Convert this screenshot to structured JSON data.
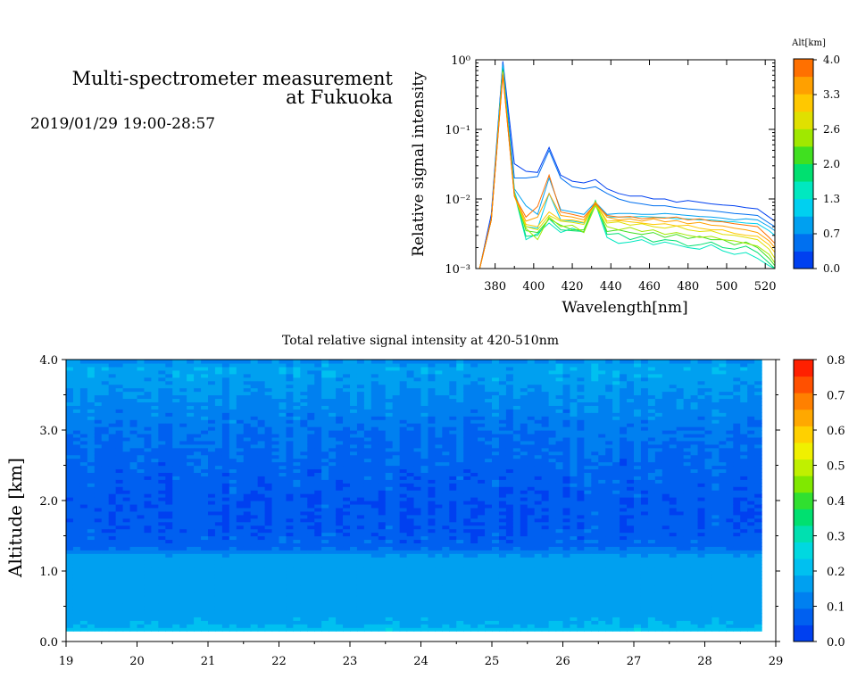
{
  "header": {
    "title_line1": "Multi-spectrometer measurement",
    "title_line2": "at Fukuoka",
    "datetime": "2019/01/29 19:00-28:57"
  },
  "chart_data": [
    {
      "type": "line",
      "xlabel": "Wavelength[nm]",
      "ylabel": "Relative signal intensity",
      "xlim": [
        370,
        525
      ],
      "ylim": [
        0.001,
        1
      ],
      "yscale": "log",
      "x_ticks": [
        "380",
        "400",
        "420",
        "440",
        "460",
        "480",
        "500",
        "520"
      ],
      "y_ticks": [
        "10⁻³",
        "10⁻²",
        "10⁻¹",
        "10⁰"
      ],
      "colorbar": {
        "title": "Alt[km]",
        "ticks": [
          "4.0",
          "3.3",
          "2.6",
          "2.0",
          "1.3",
          "0.7",
          "0.0"
        ],
        "colors": [
          "#0040f0",
          "#0070f0",
          "#00a0f0",
          "#00d0f0",
          "#00e8c0",
          "#00e070",
          "#40e020",
          "#a0e800",
          "#e0e000",
          "#ffc800",
          "#ffa000",
          "#ff7000"
        ]
      },
      "x": [
        372,
        378,
        384,
        390,
        396,
        402,
        408,
        414,
        420,
        426,
        432,
        438,
        444,
        450,
        456,
        462,
        468,
        474,
        480,
        486,
        492,
        498,
        504,
        510,
        516,
        522,
        525
      ],
      "series": [
        {
          "color": "#0040f0",
          "values": [
            0.001,
            0.006,
            0.95,
            0.032,
            0.025,
            0.024,
            0.055,
            0.022,
            0.018,
            0.017,
            0.019,
            0.014,
            0.012,
            0.011,
            0.011,
            0.01,
            0.01,
            0.009,
            0.0095,
            0.009,
            0.0085,
            0.0082,
            0.008,
            0.0075,
            0.0072,
            0.0055,
            0.0048
          ]
        },
        {
          "color": "#0070f0",
          "values": [
            0.001,
            0.005,
            0.9,
            0.02,
            0.02,
            0.021,
            0.05,
            0.02,
            0.015,
            0.014,
            0.015,
            0.012,
            0.01,
            0.009,
            0.0085,
            0.008,
            0.008,
            0.0075,
            0.0072,
            0.007,
            0.0068,
            0.0065,
            0.0062,
            0.006,
            0.0058,
            0.0045,
            0.004
          ]
        },
        {
          "color": "#00a0f0",
          "values": [
            0.001,
            0.005,
            0.85,
            0.014,
            0.008,
            0.006,
            0.02,
            0.007,
            0.0065,
            0.006,
            0.009,
            0.006,
            0.0062,
            0.0062,
            0.006,
            0.006,
            0.0062,
            0.006,
            0.0058,
            0.0056,
            0.0055,
            0.0053,
            0.005,
            0.0052,
            0.005,
            0.004,
            0.0035
          ]
        },
        {
          "color": "#00d0f0",
          "values": [
            0.001,
            0.005,
            0.8,
            0.013,
            0.004,
            0.0038,
            0.012,
            0.005,
            0.0048,
            0.0045,
            0.009,
            0.0055,
            0.0055,
            0.0055,
            0.0056,
            0.0055,
            0.0054,
            0.0052,
            0.0052,
            0.005,
            0.005,
            0.0048,
            0.0047,
            0.0045,
            0.0044,
            0.0035,
            0.003
          ]
        },
        {
          "color": "#00e8c0",
          "values": [
            0.001,
            0.005,
            0.75,
            0.012,
            0.0026,
            0.0032,
            0.0045,
            0.0033,
            0.0038,
            0.0033,
            0.0085,
            0.0028,
            0.0023,
            0.0024,
            0.0026,
            0.0022,
            0.0024,
            0.0022,
            0.002,
            0.0019,
            0.0022,
            0.0018,
            0.0016,
            0.0017,
            0.0014,
            0.0011,
            0.001
          ]
        },
        {
          "color": "#00e070",
          "values": [
            0.001,
            0.005,
            0.72,
            0.012,
            0.0029,
            0.003,
            0.0052,
            0.0036,
            0.0035,
            0.0034,
            0.0095,
            0.0031,
            0.0032,
            0.0026,
            0.0029,
            0.0024,
            0.0026,
            0.0025,
            0.0021,
            0.0022,
            0.0024,
            0.002,
            0.0019,
            0.0021,
            0.0017,
            0.0012,
            0.001
          ]
        },
        {
          "color": "#40e020",
          "values": [
            0.001,
            0.005,
            0.7,
            0.012,
            0.0035,
            0.0033,
            0.0052,
            0.0042,
            0.0036,
            0.0036,
            0.009,
            0.0034,
            0.0036,
            0.0033,
            0.0031,
            0.0033,
            0.0028,
            0.0031,
            0.0027,
            0.0029,
            0.0026,
            0.0026,
            0.0022,
            0.0024,
            0.002,
            0.0014,
            0.0011
          ]
        },
        {
          "color": "#a0e800",
          "values": [
            0.001,
            0.005,
            0.68,
            0.012,
            0.0038,
            0.0026,
            0.0055,
            0.004,
            0.0042,
            0.0033,
            0.008,
            0.004,
            0.0036,
            0.0039,
            0.0034,
            0.0036,
            0.0031,
            0.0033,
            0.003,
            0.0028,
            0.0029,
            0.0026,
            0.0025,
            0.0023,
            0.0021,
            0.0016,
            0.0012
          ]
        },
        {
          "color": "#e0e000",
          "values": [
            0.001,
            0.005,
            0.66,
            0.011,
            0.004,
            0.0036,
            0.0058,
            0.0048,
            0.0046,
            0.0043,
            0.0085,
            0.0045,
            0.0047,
            0.0042,
            0.0044,
            0.004,
            0.0038,
            0.0041,
            0.0036,
            0.0034,
            0.0035,
            0.0031,
            0.003,
            0.0028,
            0.0026,
            0.0019,
            0.0014
          ]
        },
        {
          "color": "#ffc800",
          "values": [
            0.001,
            0.005,
            0.64,
            0.011,
            0.0043,
            0.004,
            0.0065,
            0.005,
            0.005,
            0.0046,
            0.009,
            0.0048,
            0.0049,
            0.0047,
            0.0045,
            0.0043,
            0.0044,
            0.0041,
            0.0042,
            0.0038,
            0.0036,
            0.0036,
            0.0032,
            0.003,
            0.0029,
            0.0022,
            0.0017
          ]
        },
        {
          "color": "#ffa000",
          "values": [
            0.001,
            0.005,
            0.62,
            0.011,
            0.0048,
            0.0055,
            0.012,
            0.0058,
            0.0055,
            0.005,
            0.009,
            0.0055,
            0.005,
            0.0052,
            0.0048,
            0.0052,
            0.0047,
            0.0049,
            0.0044,
            0.0046,
            0.0042,
            0.0041,
            0.0038,
            0.0036,
            0.0033,
            0.0025,
            0.002
          ]
        },
        {
          "color": "#ff7000",
          "values": [
            0.001,
            0.005,
            0.6,
            0.011,
            0.0055,
            0.0078,
            0.022,
            0.0065,
            0.006,
            0.0055,
            0.0085,
            0.0058,
            0.0055,
            0.0056,
            0.0052,
            0.0054,
            0.0053,
            0.0055,
            0.005,
            0.0052,
            0.0048,
            0.0047,
            0.0044,
            0.0042,
            0.004,
            0.0028,
            0.0023
          ]
        }
      ]
    },
    {
      "type": "heatmap",
      "title": "Total relative signal intensity at 420-510nm",
      "xlabel": "",
      "ylabel": "Altitude [km]",
      "xlim": [
        19,
        29
      ],
      "ylim": [
        0,
        4
      ],
      "x_ticks": [
        "19",
        "20",
        "21",
        "22",
        "23",
        "24",
        "25",
        "26",
        "27",
        "28",
        "29"
      ],
      "y_ticks": [
        "0.0",
        "1.0",
        "2.0",
        "3.0",
        "4.0"
      ],
      "data_x_range": [
        19,
        28.8
      ],
      "data_y_range": [
        0.15,
        4.0
      ],
      "profile": [
        {
          "alt": 0.15,
          "value": 0.26
        },
        {
          "alt": 0.2,
          "value": 0.19
        },
        {
          "alt": 0.5,
          "value": 0.17
        },
        {
          "alt": 1.0,
          "value": 0.17
        },
        {
          "alt": 1.2,
          "value": 0.16
        },
        {
          "alt": 1.35,
          "value": 0.08
        },
        {
          "alt": 1.6,
          "value": 0.06
        },
        {
          "alt": 2.0,
          "value": 0.06
        },
        {
          "alt": 2.5,
          "value": 0.08
        },
        {
          "alt": 3.0,
          "value": 0.1
        },
        {
          "alt": 3.5,
          "value": 0.14
        },
        {
          "alt": 3.9,
          "value": 0.18
        },
        {
          "alt": 4.0,
          "value": 0.12
        }
      ],
      "colorbar": {
        "ticks": [
          "0.8",
          "0.7",
          "0.6",
          "0.5",
          "0.4",
          "0.3",
          "0.2",
          "0.1",
          "0.0"
        ],
        "range": [
          0,
          0.8
        ],
        "colors": [
          "#0040f0",
          "#0060f0",
          "#0080f0",
          "#00a0f0",
          "#00c0f0",
          "#00d8e0",
          "#00e0b0",
          "#00e070",
          "#30e030",
          "#80e800",
          "#c0f000",
          "#f0f000",
          "#ffd000",
          "#ffa800",
          "#ff8000",
          "#ff5000",
          "#ff2000"
        ]
      }
    }
  ]
}
